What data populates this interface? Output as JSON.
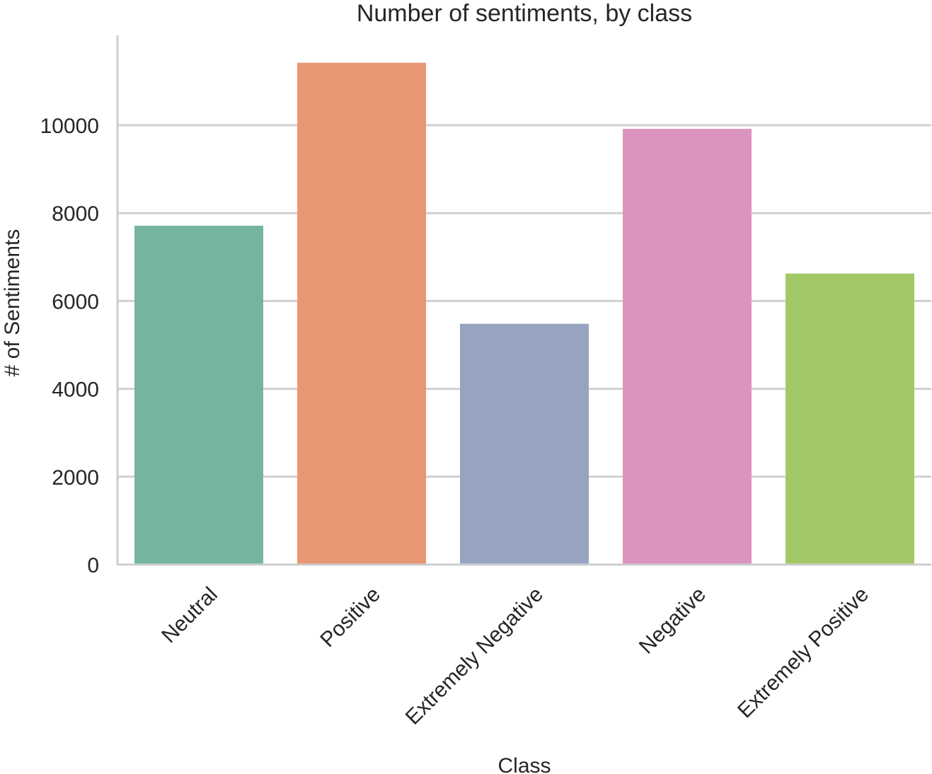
{
  "chart_data": {
    "type": "bar",
    "title": "Number of sentiments, by class",
    "xlabel": "Class",
    "ylabel": "# of Sentiments",
    "categories": [
      "Neutral",
      "Positive",
      "Extremely Negative",
      "Negative",
      "Extremely Positive"
    ],
    "values": [
      7713,
      11422,
      5481,
      9917,
      6624
    ],
    "colors": [
      "#75b5a0",
      "#e89775",
      "#96a4c2",
      "#db94bd",
      "#a3c966"
    ],
    "ylim": [
      0,
      12000
    ],
    "yticks": [
      0,
      2000,
      4000,
      6000,
      8000,
      10000
    ],
    "yticks_labels": [
      "0",
      "2000",
      "4000",
      "6000",
      "8000",
      "10000"
    ],
    "grid": "horizontal",
    "xtick_rotation": -45
  }
}
